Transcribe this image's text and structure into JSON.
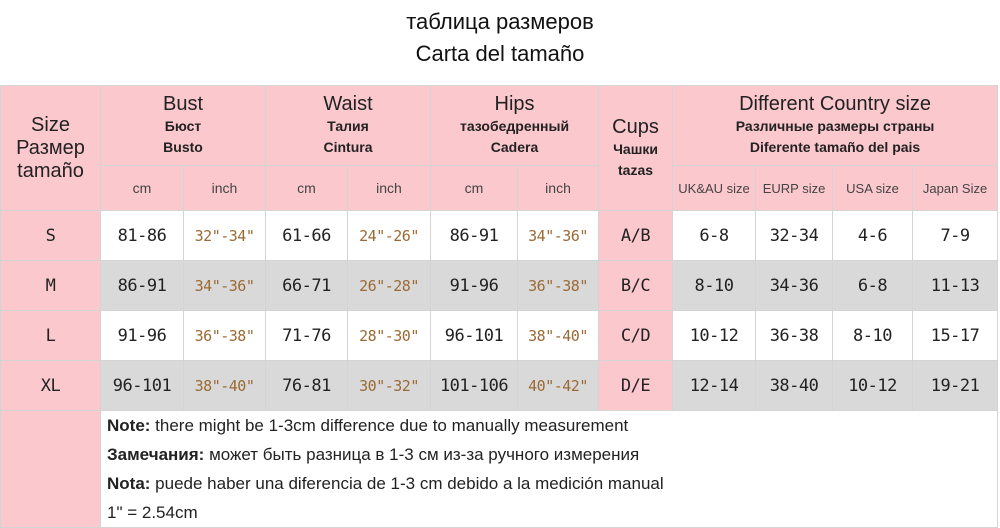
{
  "title": [
    "таблица размеров",
    "Carta del tamaño"
  ],
  "header": {
    "size": [
      "Size",
      "Размер",
      "tamaño"
    ],
    "groups": [
      {
        "title": "Bust",
        "sub": [
          "Бюст",
          "Busto"
        ]
      },
      {
        "title": "Waist",
        "sub": [
          "Талия",
          "Cintura"
        ]
      },
      {
        "title": "Hips",
        "sub": [
          "тазобедренный",
          "Cadera"
        ]
      }
    ],
    "cups": [
      "Cups",
      "Чашки",
      "tazas"
    ],
    "country": {
      "title": "Different Country size",
      "sub": [
        "Различные размеры страны",
        "Diferente tamaño del pais"
      ]
    },
    "units": [
      "cm",
      "inch",
      "cm",
      "inch",
      "cm",
      "inch"
    ],
    "country_cols": [
      "UK&AU size",
      "EURP size",
      "USA size",
      "Japan Size"
    ]
  },
  "rows": [
    [
      "S",
      "81-86",
      "32\"-34\"",
      "61-66",
      "24\"-26\"",
      "86-91",
      "34\"-36\"",
      "A/B",
      "6-8",
      "32-34",
      "4-6",
      "7-9"
    ],
    [
      "M",
      "86-91",
      "34\"-36\"",
      "66-71",
      "26\"-28\"",
      "91-96",
      "36\"-38\"",
      "B/C",
      "8-10",
      "34-36",
      "6-8",
      "11-13"
    ],
    [
      "L",
      "91-96",
      "36\"-38\"",
      "71-76",
      "28\"-30\"",
      "96-101",
      "38\"-40\"",
      "C/D",
      "10-12",
      "36-38",
      "8-10",
      "15-17"
    ],
    [
      "XL",
      "96-101",
      "38\"-40\"",
      "76-81",
      "30\"-32\"",
      "101-106",
      "40\"-42\"",
      "D/E",
      "12-14",
      "38-40",
      "10-12",
      "19-21"
    ]
  ],
  "notes": [
    {
      "label": "Note:",
      "text": " there might be 1-3cm difference due to manually measurement"
    },
    {
      "label": "Замечания:",
      "text": " может быть разница в 1-3 см из-за ручного измерения"
    },
    {
      "label": "Nota:",
      "text": " puede haber una diferencia de 1-3 cm debido a la medición manual"
    },
    {
      "text": "1\"  = 2.54cm"
    }
  ]
}
